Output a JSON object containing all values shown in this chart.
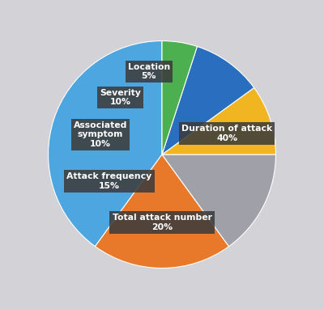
{
  "values": [
    40,
    20,
    15,
    10,
    10,
    5
  ],
  "colors": [
    "#4da6e0",
    "#e8782a",
    "#a0a0a8",
    "#f0b520",
    "#2a6fbf",
    "#4caf50"
  ],
  "label_texts": [
    "Duration of attack",
    "Total attack number",
    "Attack frequency",
    "Associated\nsymptom",
    "Severity",
    "Location"
  ],
  "percentages": [
    "40%",
    "20%",
    "15%",
    "10%",
    "10%",
    "5%"
  ],
  "background_color": "#d3d3d7",
  "label_box_color": "#3c3c3c",
  "label_text_color": "#ffffff",
  "startangle": 90,
  "label_r": [
    0.58,
    0.6,
    0.52,
    0.58,
    0.62,
    0.72
  ],
  "label_angle_offset": [
    0,
    0,
    0,
    0,
    0,
    0
  ]
}
